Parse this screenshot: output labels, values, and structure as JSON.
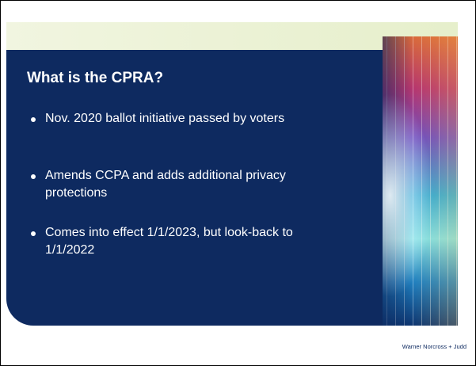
{
  "slide": {
    "title": "What is the CPRA?",
    "bullets": [
      "Nov. 2020 ballot initiative passed by voters",
      "Amends CCPA and adds additional privacy protections",
      "Comes into effect 1/1/2023, but look-back to 1/1/2022"
    ],
    "footer": "Warner Norcross + Judd"
  }
}
